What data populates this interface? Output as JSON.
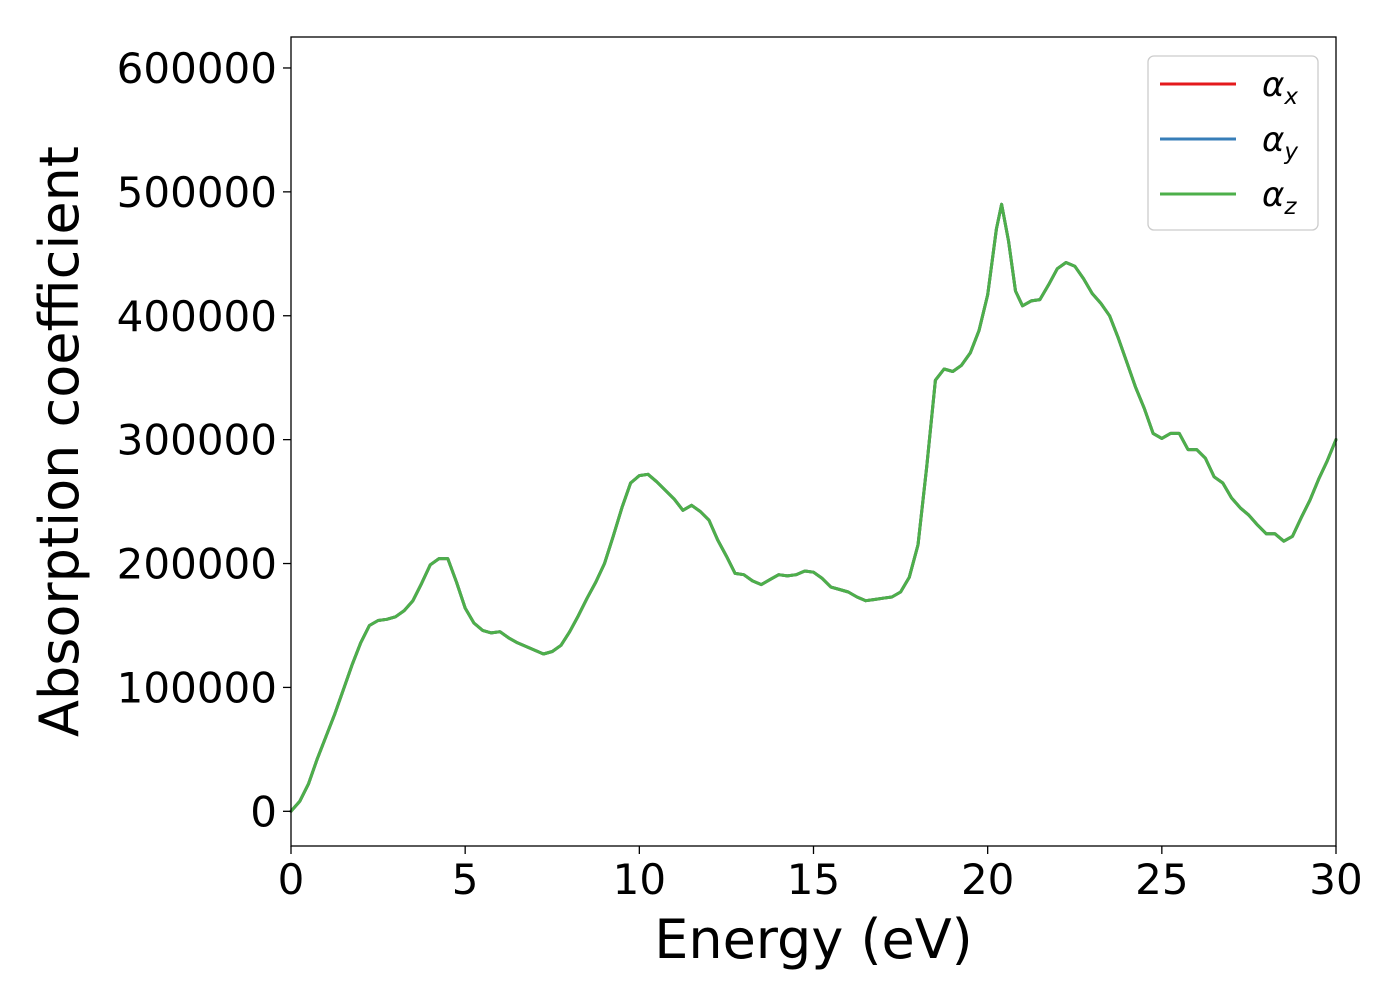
{
  "chart_data": {
    "type": "line",
    "title": "",
    "xlabel": "Energy (eV)",
    "ylabel": "Absorption coefficient",
    "xlim": [
      0,
      30
    ],
    "ylim": [
      -28000,
      625000
    ],
    "xticks": [
      0,
      5,
      10,
      15,
      20,
      25,
      30
    ],
    "yticks": [
      0,
      100000,
      200000,
      300000,
      400000,
      500000,
      600000
    ],
    "grid": false,
    "legend_position": "top-right",
    "x": [
      0,
      0.25,
      0.5,
      0.75,
      1.0,
      1.25,
      1.5,
      1.75,
      2.0,
      2.25,
      2.5,
      2.75,
      3.0,
      3.25,
      3.5,
      3.75,
      4.0,
      4.25,
      4.5,
      4.75,
      5.0,
      5.25,
      5.5,
      5.75,
      6.0,
      6.25,
      6.5,
      6.75,
      7.0,
      7.25,
      7.5,
      7.75,
      8.0,
      8.25,
      8.5,
      8.75,
      9.0,
      9.25,
      9.5,
      9.75,
      10.0,
      10.25,
      10.5,
      10.75,
      11.0,
      11.25,
      11.5,
      11.75,
      12.0,
      12.25,
      12.5,
      12.75,
      13.0,
      13.25,
      13.5,
      13.75,
      14.0,
      14.25,
      14.5,
      14.75,
      15.0,
      15.25,
      15.5,
      15.75,
      16.0,
      16.25,
      16.5,
      16.75,
      17.0,
      17.25,
      17.5,
      17.75,
      18.0,
      18.25,
      18.5,
      18.75,
      19.0,
      19.25,
      19.5,
      19.75,
      20.0,
      20.25,
      20.4,
      20.6,
      20.8,
      21.0,
      21.25,
      21.5,
      21.75,
      22.0,
      22.25,
      22.5,
      22.75,
      23.0,
      23.25,
      23.5,
      23.75,
      24.0,
      24.25,
      24.5,
      24.75,
      25.0,
      25.25,
      25.5,
      25.75,
      26.0,
      26.25,
      26.5,
      26.75,
      27.0,
      27.25,
      27.5,
      27.75,
      28.0,
      28.25,
      28.5,
      28.75,
      29.0,
      29.25,
      29.5,
      29.75,
      30.0
    ],
    "series": [
      {
        "name": "α_x",
        "color": "#e41a1c",
        "values": [
          0,
          8000,
          22000,
          42000,
          60000,
          78000,
          98000,
          118000,
          136000,
          150000,
          154000,
          155000,
          157000,
          162000,
          170000,
          184000,
          199000,
          204000,
          204000,
          185000,
          164000,
          152000,
          146000,
          144000,
          145000,
          140000,
          136000,
          133000,
          130000,
          127000,
          129000,
          134000,
          145000,
          158000,
          172000,
          185000,
          200000,
          222000,
          245000,
          265000,
          271000,
          272000,
          266000,
          259000,
          252000,
          243000,
          247000,
          242000,
          235000,
          219000,
          206000,
          192000,
          191000,
          186000,
          183000,
          187000,
          191000,
          190000,
          191000,
          194000,
          193000,
          188000,
          181000,
          179000,
          177000,
          173000,
          170000,
          171000,
          172000,
          173000,
          177000,
          189000,
          215000,
          278000,
          348000,
          357000,
          355000,
          360000,
          370000,
          388000,
          417000,
          470000,
          490000,
          460000,
          420000,
          408000,
          412000,
          413000,
          425000,
          438000,
          443000,
          440000,
          430000,
          418000,
          410000,
          400000,
          382000,
          362000,
          342000,
          325000,
          305000,
          301000,
          305000,
          305000,
          292000,
          292000,
          285000,
          270000,
          265000,
          253000,
          245000,
          239000,
          231000,
          224000,
          224000,
          218000,
          222000,
          237000,
          251000,
          268000,
          283000,
          300000
        ]
      },
      {
        "name": "α_y",
        "color": "#377eb8",
        "values": [
          0,
          8000,
          22000,
          42000,
          60000,
          78000,
          98000,
          118000,
          136000,
          150000,
          154000,
          155000,
          157000,
          162000,
          170000,
          184000,
          199000,
          204000,
          204000,
          185000,
          164000,
          152000,
          146000,
          144000,
          145000,
          140000,
          136000,
          133000,
          130000,
          127000,
          129000,
          134000,
          145000,
          158000,
          172000,
          185000,
          200000,
          222000,
          245000,
          265000,
          271000,
          272000,
          266000,
          259000,
          252000,
          243000,
          247000,
          242000,
          235000,
          219000,
          206000,
          192000,
          191000,
          186000,
          183000,
          187000,
          191000,
          190000,
          191000,
          194000,
          193000,
          188000,
          181000,
          179000,
          177000,
          173000,
          170000,
          171000,
          172000,
          173000,
          177000,
          189000,
          215000,
          278000,
          348000,
          357000,
          355000,
          360000,
          370000,
          388000,
          417000,
          470000,
          490000,
          460000,
          420000,
          408000,
          412000,
          413000,
          425000,
          438000,
          443000,
          440000,
          430000,
          418000,
          410000,
          400000,
          382000,
          362000,
          342000,
          325000,
          305000,
          301000,
          305000,
          305000,
          292000,
          292000,
          285000,
          270000,
          265000,
          253000,
          245000,
          239000,
          231000,
          224000,
          224000,
          218000,
          222000,
          237000,
          251000,
          268000,
          283000,
          300000
        ]
      },
      {
        "name": "α_z",
        "color": "#4daf4a",
        "values": [
          0,
          8000,
          22000,
          42000,
          60000,
          78000,
          98000,
          118000,
          136000,
          150000,
          154000,
          155000,
          157000,
          162000,
          170000,
          184000,
          199000,
          204000,
          204000,
          185000,
          164000,
          152000,
          146000,
          144000,
          145000,
          140000,
          136000,
          133000,
          130000,
          127000,
          129000,
          134000,
          145000,
          158000,
          172000,
          185000,
          200000,
          222000,
          245000,
          265000,
          271000,
          272000,
          266000,
          259000,
          252000,
          243000,
          247000,
          242000,
          235000,
          219000,
          206000,
          192000,
          191000,
          186000,
          183000,
          187000,
          191000,
          190000,
          191000,
          194000,
          193000,
          188000,
          181000,
          179000,
          177000,
          173000,
          170000,
          171000,
          172000,
          173000,
          177000,
          189000,
          215000,
          278000,
          348000,
          357000,
          355000,
          360000,
          370000,
          388000,
          417000,
          470000,
          490000,
          460000,
          420000,
          408000,
          412000,
          413000,
          425000,
          438000,
          443000,
          440000,
          430000,
          418000,
          410000,
          400000,
          382000,
          362000,
          342000,
          325000,
          305000,
          301000,
          305000,
          305000,
          292000,
          292000,
          285000,
          270000,
          265000,
          253000,
          245000,
          239000,
          231000,
          224000,
          224000,
          218000,
          222000,
          237000,
          251000,
          268000,
          283000,
          300000
        ]
      }
    ],
    "legend": [
      {
        "symbol": "α",
        "subscript": "x"
      },
      {
        "symbol": "α",
        "subscript": "y"
      },
      {
        "symbol": "α",
        "subscript": "z"
      }
    ]
  }
}
